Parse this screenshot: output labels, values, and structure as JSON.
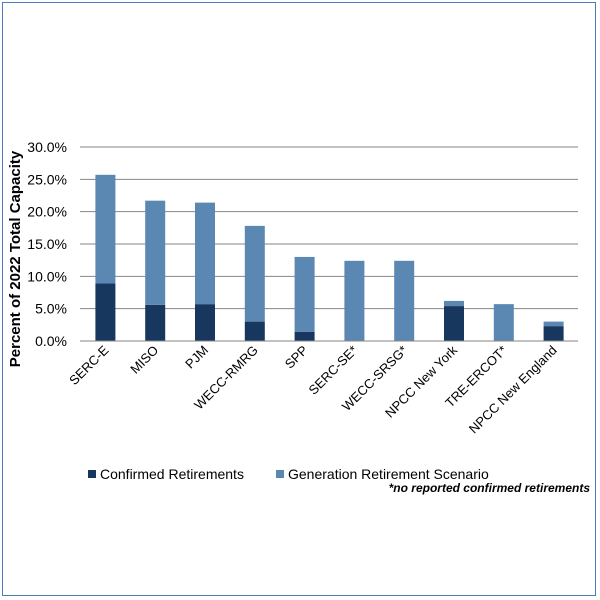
{
  "chart_data": {
    "type": "bar",
    "stacked": true,
    "categories": [
      "SERC-E",
      "MISO",
      "PJM",
      "WECC-RMRG",
      "SPP",
      "SERC-SE*",
      "WECC-SRSG*",
      "NPCC New York",
      "TRE-ERCOT*",
      "NPCC New England"
    ],
    "series": [
      {
        "name": "Confirmed Retirements",
        "color": "#17375e",
        "values": [
          0.089,
          0.056,
          0.057,
          0.03,
          0.014,
          0.0,
          0.0,
          0.054,
          0.0,
          0.023
        ]
      },
      {
        "name": "Generation Retirement Scenario",
        "color": "#5b87b3",
        "values": [
          0.168,
          0.161,
          0.157,
          0.148,
          0.116,
          0.124,
          0.124,
          0.008,
          0.057,
          0.007
        ]
      }
    ],
    "ylabel": "Percent of 2022 Total Capacity",
    "yticks": [
      "0.0%",
      "5.0%",
      "10.0%",
      "15.0%",
      "20.0%",
      "25.0%",
      "30.0%"
    ],
    "ylim": [
      0,
      0.3
    ],
    "grid": true,
    "legend_position": "bottom",
    "footnote": "*no reported confirmed retirements"
  }
}
